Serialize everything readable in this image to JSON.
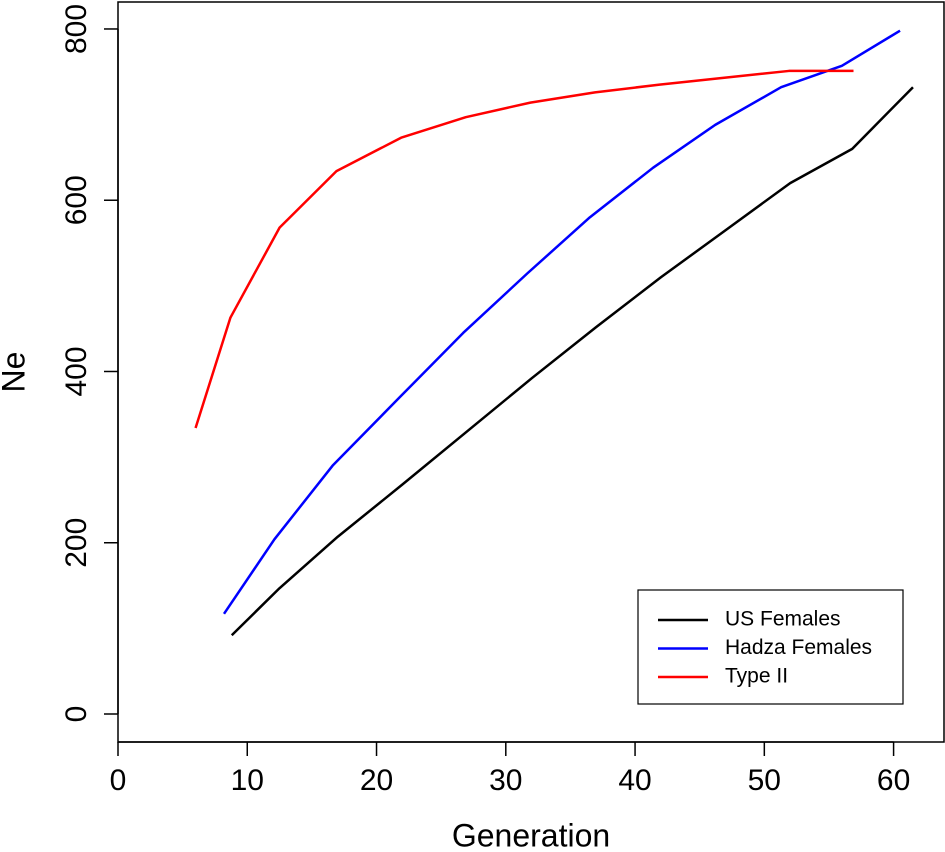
{
  "chart_data": {
    "type": "line",
    "x_label": "Generation",
    "y_label": "Ne",
    "xlim": [
      0,
      63.9
    ],
    "ylim": [
      -32.7,
      831.5
    ],
    "xticks": [
      0,
      10,
      20,
      30,
      40,
      50,
      60
    ],
    "yticks": [
      0,
      200,
      400,
      600,
      800
    ],
    "legend_position": "bottom-right",
    "series": [
      {
        "name": "US Females",
        "color": "#000000",
        "x": [
          8.8,
          12.5,
          17,
          22,
          27,
          32,
          37,
          42,
          47,
          52,
          56.8,
          61.5
        ],
        "values": [
          92,
          147,
          207,
          268,
          330,
          392,
          452,
          510,
          565,
          620,
          660,
          732
        ]
      },
      {
        "name": "Hadza Females",
        "color": "#0000ff",
        "x": [
          8.2,
          12.1,
          16.6,
          21.8,
          26.7,
          31.7,
          36.5,
          41.4,
          46.2,
          51.3,
          56,
          60.5
        ],
        "values": [
          117,
          204,
          290,
          370,
          445,
          515,
          580,
          638,
          688,
          732,
          757,
          798
        ]
      },
      {
        "name": "Type II",
        "color": "#ff0000",
        "x": [
          6,
          8.7,
          12.5,
          16.9,
          21.9,
          26.9,
          31.9,
          36.9,
          41.9,
          46.9,
          51.9,
          56.9
        ],
        "values": [
          334,
          463,
          568,
          634,
          673,
          697,
          714,
          726,
          735,
          743,
          751,
          751
        ]
      }
    ]
  }
}
